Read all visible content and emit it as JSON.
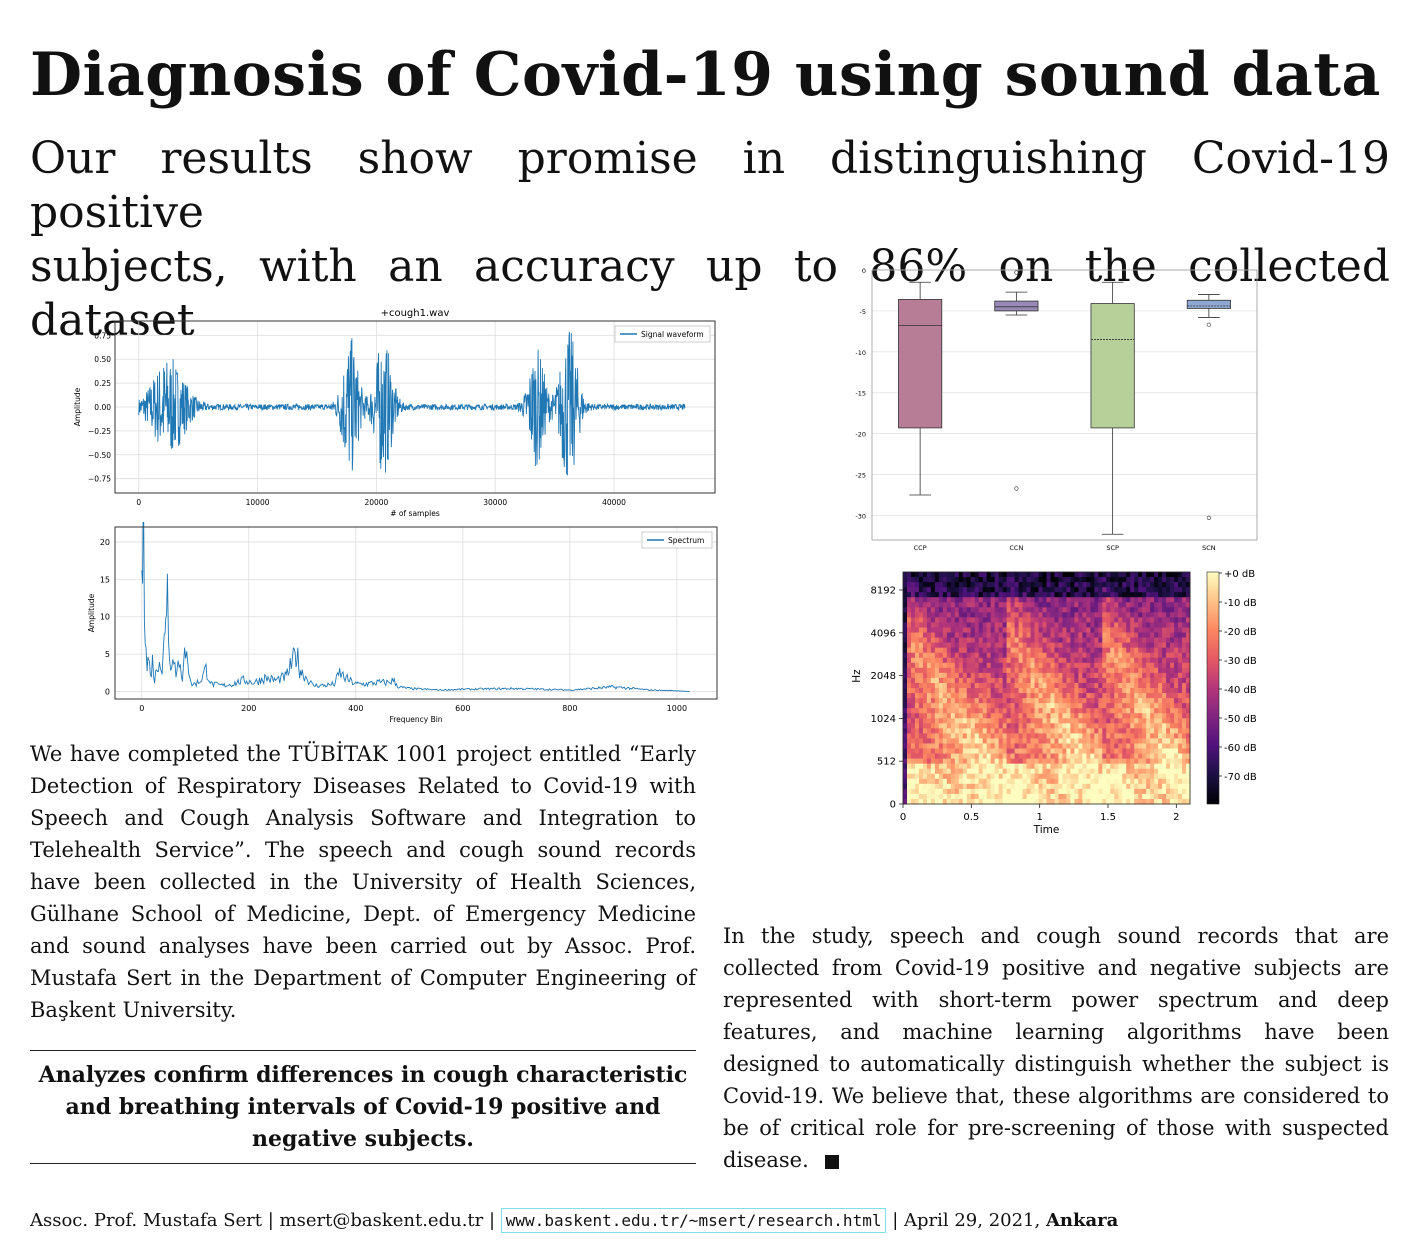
{
  "title": "Diagnosis of Covid-19 using sound data",
  "subtitle": {
    "line1": "Our results show promise in distinguishing Covid-19 positive",
    "line2": "subjects, with an accuracy up to 86% on the collected dataset"
  },
  "left_paragraph": "We have completed the TÜBİTAK 1001 project entitled “Early Detection of Respiratory Diseases Related to Covid-19 with Speech and Cough Analysis Software and Integration to Telehealth Service”. The speech and cough sound records have been collected in the University of Health Sciences, Gülhane School of Medicine, Dept. of Emergency Medicine and sound analyses have been carried out by Assoc. Prof. Mustafa Sert in the Department of Computer Engineering of Başkent University.",
  "callout": "Analyzes confirm differences in cough characteristic and breathing intervals of Covid-19 positive and negative subjects.",
  "right_paragraph": "In the study, speech and cough sound records that are collected from Covid-19 positive and negative subjects are represented with short-term power spectrum and deep features, and machine learning algorithms have been designed to automatically distinguish whether the subject is Covid-19. We believe that, these algorithms are considered to be of critical role for pre-screening of those with suspected disease.",
  "footer": {
    "author": "Assoc. Prof. Mustafa Sert",
    "email": "msert@baskent.edu.tr",
    "url": "www.baskent.edu.tr/~msert/research.html",
    "date": "April 29, 2021,",
    "city": "Ankara"
  },
  "chart_data": [
    {
      "type": "line",
      "title": "+cough1.wav",
      "xlabel": "# of samples",
      "ylabel": "Amplitude",
      "legend": "Signal waveform",
      "xlim": [
        -2000,
        48500
      ],
      "ylim": [
        -0.9,
        0.9
      ],
      "xticks": [
        0,
        10000,
        20000,
        30000,
        40000
      ],
      "yticks": [
        0.75,
        0.5,
        0.25,
        0.0,
        -0.25,
        -0.5,
        -0.75
      ],
      "ytick_labels": [
        "0.75",
        "0.50",
        "0.25",
        "0.00",
        "−0.25",
        "−0.50",
        "−0.75"
      ],
      "color": "#1f77b4",
      "n_samples": 46000,
      "bursts": [
        {
          "center": 2500,
          "width": 2500,
          "amp": 0.5
        },
        {
          "center": 17800,
          "width": 1200,
          "amp": 0.72
        },
        {
          "center": 20600,
          "width": 1300,
          "amp": 0.7
        },
        {
          "center": 33500,
          "width": 1200,
          "amp": 0.6
        },
        {
          "center": 36200,
          "width": 1300,
          "amp": 0.8
        }
      ],
      "noise_amp": 0.03
    },
    {
      "type": "line",
      "title": "",
      "xlabel": "Frequency Bin",
      "ylabel": "Amplitude",
      "legend": "Spectrum",
      "xlim": [
        -50,
        1075
      ],
      "ylim": [
        -1,
        22
      ],
      "xticks": [
        0,
        200,
        400,
        600,
        800,
        1000
      ],
      "yticks": [
        0,
        5,
        10,
        15,
        20
      ],
      "color": "#1f77b4",
      "points": [
        [
          0,
          14.5
        ],
        [
          3,
          21
        ],
        [
          5,
          12
        ],
        [
          8,
          9
        ],
        [
          10,
          3
        ],
        [
          13,
          5
        ],
        [
          16,
          2
        ],
        [
          20,
          4
        ],
        [
          24,
          1.5
        ],
        [
          28,
          3
        ],
        [
          33,
          5
        ],
        [
          38,
          2
        ],
        [
          42,
          7
        ],
        [
          45,
          12
        ],
        [
          48,
          14
        ],
        [
          52,
          6
        ],
        [
          56,
          3
        ],
        [
          60,
          5
        ],
        [
          64,
          2
        ],
        [
          68,
          6
        ],
        [
          72,
          3
        ],
        [
          76,
          1
        ],
        [
          80,
          5
        ],
        [
          84,
          7
        ],
        [
          88,
          3
        ],
        [
          92,
          1
        ],
        [
          100,
          1
        ],
        [
          110,
          1.5
        ],
        [
          120,
          3
        ],
        [
          130,
          1
        ],
        [
          150,
          0.8
        ],
        [
          170,
          1
        ],
        [
          190,
          1.5
        ],
        [
          210,
          1.2
        ],
        [
          230,
          1.8
        ],
        [
          250,
          1.5
        ],
        [
          270,
          2
        ],
        [
          285,
          4.5
        ],
        [
          290,
          5
        ],
        [
          295,
          3
        ],
        [
          300,
          2.5
        ],
        [
          320,
          0.8
        ],
        [
          340,
          0.8
        ],
        [
          360,
          1
        ],
        [
          370,
          2.5
        ],
        [
          380,
          1.8
        ],
        [
          400,
          1
        ],
        [
          420,
          1
        ],
        [
          440,
          1.2
        ],
        [
          460,
          1.2
        ],
        [
          470,
          1.5
        ],
        [
          480,
          0.6
        ],
        [
          500,
          0.4
        ],
        [
          560,
          0.2
        ],
        [
          600,
          0.3
        ],
        [
          700,
          0.4
        ],
        [
          800,
          0.2
        ],
        [
          860,
          0.5
        ],
        [
          880,
          0.6
        ],
        [
          900,
          0.5
        ],
        [
          950,
          0.2
        ],
        [
          1000,
          0.1
        ],
        [
          1024,
          0
        ]
      ]
    },
    {
      "type": "box",
      "categories": [
        "CCP",
        "CCN",
        "SCP",
        "SCN"
      ],
      "ylim": [
        -33,
        0
      ],
      "yticks": [
        0,
        -5,
        -10,
        -15,
        -20,
        -25,
        -30
      ],
      "boxes": [
        {
          "name": "CCP",
          "q1": -19.3,
          "median": -6.8,
          "q3": -3.6,
          "whisker_low": -27.5,
          "whisker_high": -1.5,
          "fliers": [],
          "color": "#b87d96"
        },
        {
          "name": "CCN",
          "q1": -5.0,
          "median": -4.5,
          "q3": -3.8,
          "whisker_low": -5.5,
          "whisker_high": -2.7,
          "fliers": [
            -0.3,
            -26.7
          ],
          "color": "#9989b8"
        },
        {
          "name": "SCP",
          "q1": -19.3,
          "median": -8.5,
          "q3": -4.1,
          "whisker_low": -32.3,
          "whisker_high": -1.5,
          "fliers": [],
          "color": "#b7d09a"
        },
        {
          "name": "SCN",
          "q1": -4.7,
          "median": -4.4,
          "q3": -3.7,
          "whisker_low": -5.8,
          "whisker_high": -3.0,
          "fliers": [
            -6.7,
            -30.3
          ],
          "color": "#8fa8d2"
        }
      ]
    },
    {
      "type": "heatmap",
      "xlabel": "Time",
      "ylabel": "Hz",
      "xlim": [
        0,
        2.1
      ],
      "xticks": [
        0,
        0.5,
        1,
        1.5,
        2
      ],
      "ytick_labels": [
        "0",
        "512",
        "1024",
        "2048",
        "4096",
        "8192"
      ],
      "colorbar_labels": [
        "+0 dB",
        "-10 dB",
        "-20 dB",
        "-30 dB",
        "-40 dB",
        "-50 dB",
        "-60 dB",
        "-70 dB"
      ],
      "events": [
        {
          "start": 0.02,
          "end": 0.75,
          "peak": 0.15
        },
        {
          "start": 0.77,
          "end": 1.45,
          "peak": 0.95
        },
        {
          "start": 1.47,
          "end": 2.1,
          "peak": 1.65
        }
      ],
      "colormap": [
        "#000004",
        "#1c1044",
        "#4f127b",
        "#812581",
        "#b5367a",
        "#e55964",
        "#fb8761",
        "#fec287",
        "#fcfdbf"
      ]
    }
  ]
}
